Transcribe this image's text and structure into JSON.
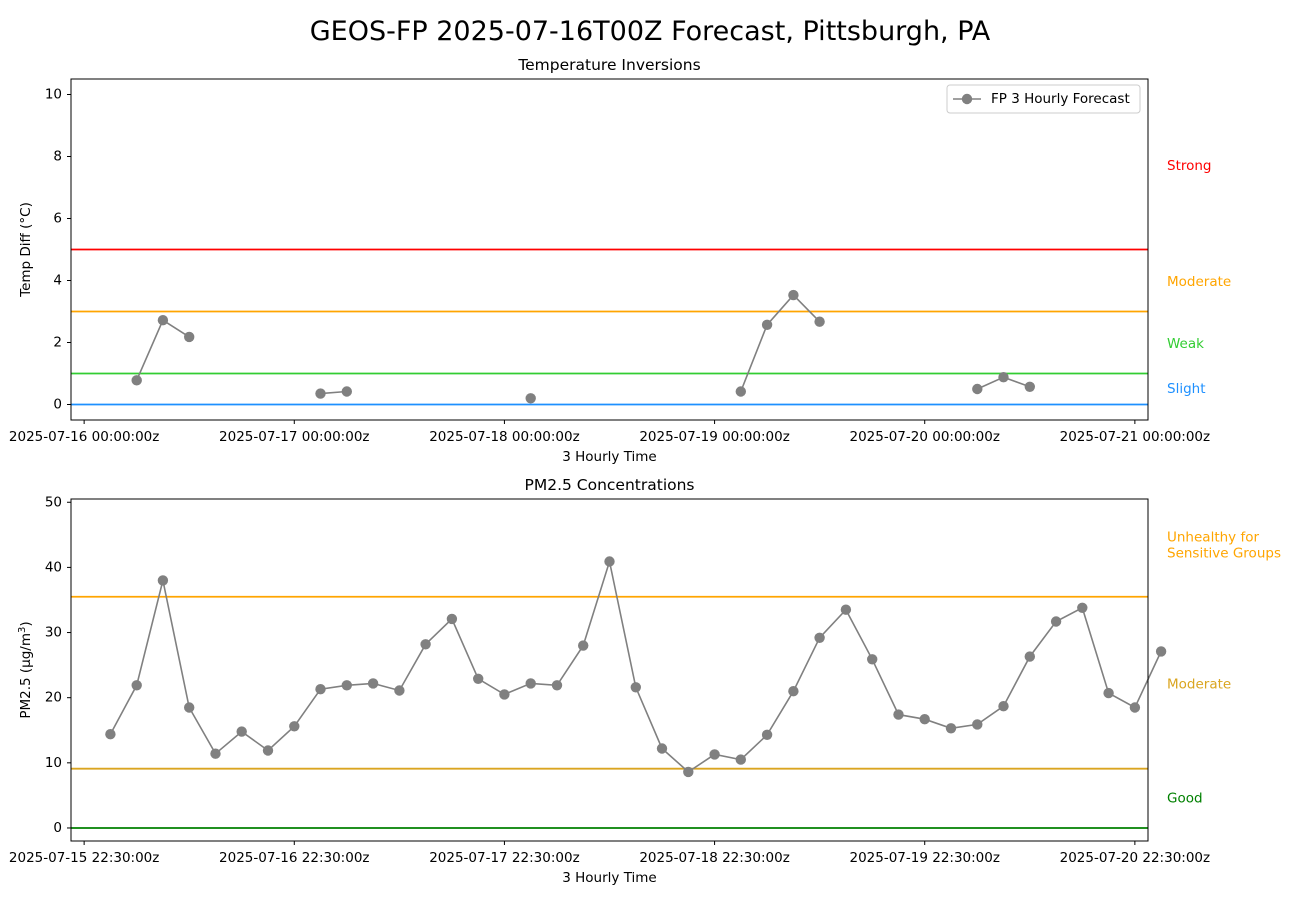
{
  "figure": {
    "title": "GEOS-FP 2025-07-16T00Z Forecast, Pittsburgh, PA"
  },
  "chart_data": [
    {
      "type": "line",
      "title": "Temperature Inversions",
      "xlabel": "3 Hourly Time",
      "ylabel": "Temp Diff (°C)",
      "xlim": [
        "2025-07-15 22:30",
        "2025-07-21 01:30"
      ],
      "ylim": [
        -0.5,
        10.5
      ],
      "x_ticks": [
        "2025-07-16 00:00:00z",
        "2025-07-17 00:00:00z",
        "2025-07-18 00:00:00z",
        "2025-07-19 00:00:00z",
        "2025-07-20 00:00:00z",
        "2025-07-21 00:00:00z"
      ],
      "y_ticks": [
        0,
        2,
        4,
        6,
        8,
        10
      ],
      "grid": false,
      "legend": {
        "placement": "top-right",
        "entries": [
          "FP 3 Hourly Forecast"
        ]
      },
      "series": [
        {
          "name": "FP 3 Hourly Forecast",
          "color": "#808080",
          "segments": [
            [
              {
                "x": "2025-07-16 06:00",
                "y": 0.78
              },
              {
                "x": "2025-07-16 09:00",
                "y": 2.72
              },
              {
                "x": "2025-07-16 12:00",
                "y": 2.18
              }
            ],
            [
              {
                "x": "2025-07-17 03:00",
                "y": 0.35
              },
              {
                "x": "2025-07-17 06:00",
                "y": 0.42
              }
            ],
            [
              {
                "x": "2025-07-18 03:00",
                "y": 0.2
              }
            ],
            [
              {
                "x": "2025-07-19 03:00",
                "y": 0.42
              },
              {
                "x": "2025-07-19 06:00",
                "y": 2.57
              },
              {
                "x": "2025-07-19 09:00",
                "y": 3.53
              },
              {
                "x": "2025-07-19 12:00",
                "y": 2.67
              }
            ],
            [
              {
                "x": "2025-07-20 06:00",
                "y": 0.5
              },
              {
                "x": "2025-07-20 09:00",
                "y": 0.88
              },
              {
                "x": "2025-07-20 12:00",
                "y": 0.57
              }
            ]
          ]
        }
      ],
      "thresholds": [
        {
          "label": "Strong",
          "value": 5,
          "color": "#ff0000",
          "label_value": 7.7
        },
        {
          "label": "Moderate",
          "value": 3,
          "color": "#ffa500",
          "label_value": 3.95
        },
        {
          "label": "Weak",
          "value": 1,
          "color": "#32cd32",
          "label_value": 1.95
        },
        {
          "label": "Slight",
          "value": 0,
          "color": "#1e90ff",
          "label_value": 0.5
        }
      ]
    },
    {
      "type": "line",
      "title": "PM2.5 Concentrations",
      "xlabel": "3 Hourly Time",
      "ylabel": "PM2.5 (μg/m",
      "ylabel_sup": "3",
      "ylabel_end": ")",
      "xlim": [
        "2025-07-15 21:00",
        "2025-07-21 00:00"
      ],
      "ylim": [
        -2,
        50.5
      ],
      "x_ticks": [
        "2025-07-15 22:30:00z",
        "2025-07-16 22:30:00z",
        "2025-07-17 22:30:00z",
        "2025-07-18 22:30:00z",
        "2025-07-19 22:30:00z",
        "2025-07-20 22:30:00z"
      ],
      "y_ticks": [
        0,
        10,
        20,
        30,
        40,
        50
      ],
      "grid": false,
      "series": [
        {
          "color": "#808080",
          "start": "2025-07-16 01:30",
          "step_hours": 3,
          "values": [
            14.4,
            21.9,
            38.0,
            18.5,
            11.4,
            14.8,
            11.9,
            15.6,
            21.3,
            21.9,
            22.2,
            21.1,
            28.2,
            32.1,
            22.9,
            20.5,
            22.2,
            21.9,
            28.0,
            40.9,
            21.6,
            12.2,
            8.6,
            11.3,
            10.5,
            14.3,
            21.0,
            29.2,
            33.5,
            25.9,
            17.4,
            16.7,
            15.3,
            15.9,
            18.7,
            26.3,
            31.7,
            33.8,
            20.7,
            18.5,
            27.1
          ]
        }
      ],
      "thresholds": [
        {
          "label_lines": [
            "Unhealthy for",
            "Sensitive Groups"
          ],
          "value": 35.5,
          "color": "#ffa500",
          "label_value": 44
        },
        {
          "label": "Moderate",
          "value": 9.1,
          "color": "#daa520",
          "label_value": 22
        },
        {
          "label": "Good",
          "value": 0,
          "color": "#008000",
          "label_value": 4.5
        }
      ]
    }
  ]
}
